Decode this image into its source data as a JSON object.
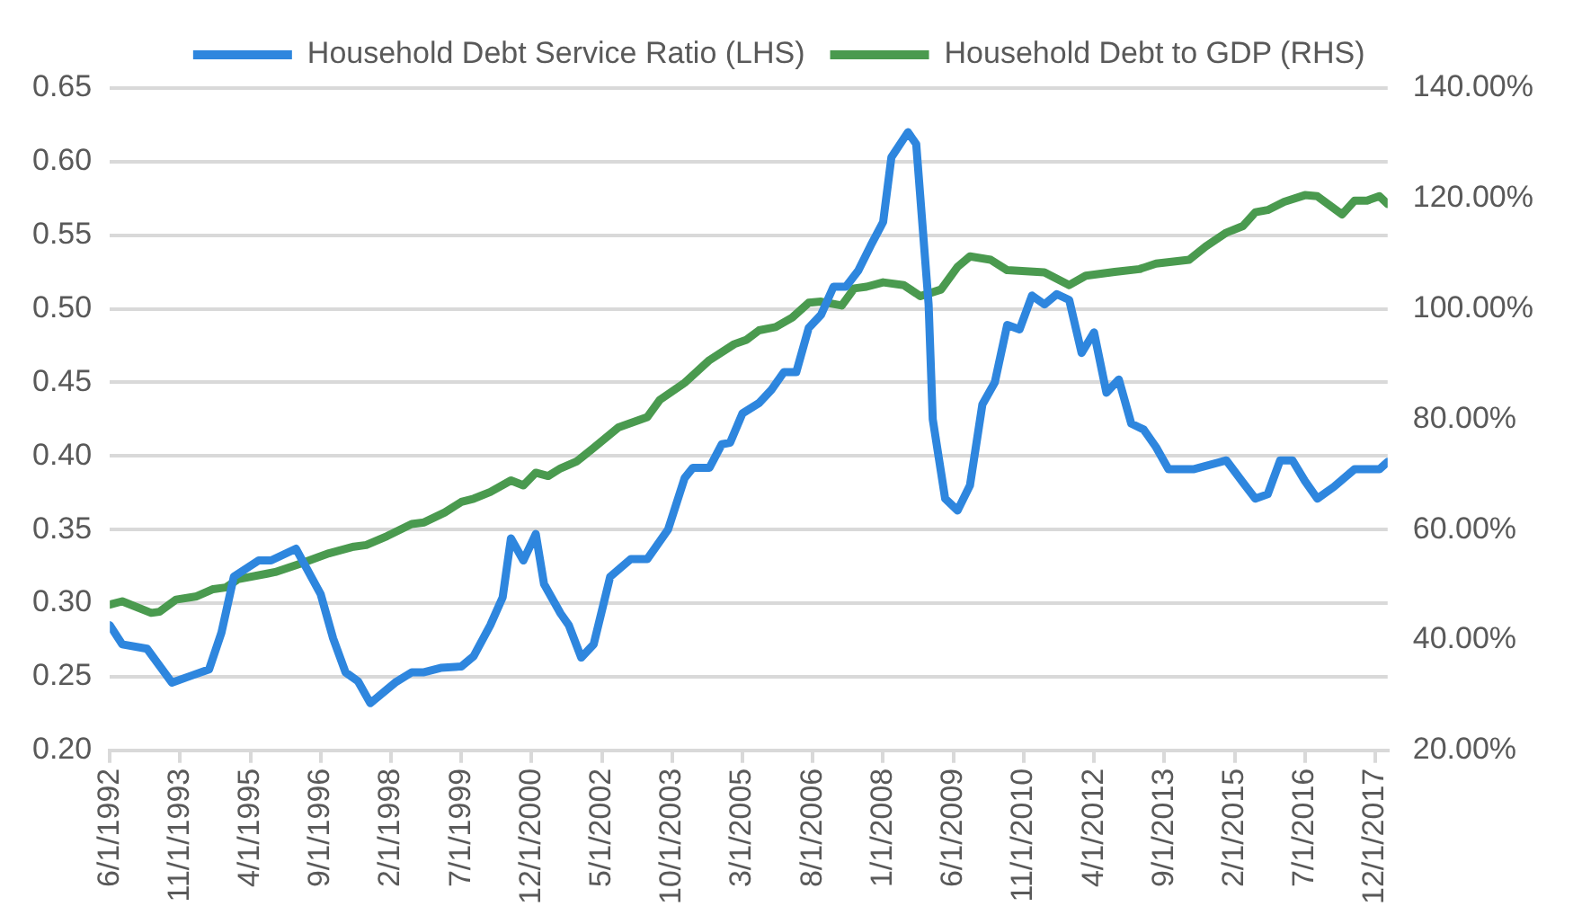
{
  "chart_data": {
    "type": "line",
    "legend": "top",
    "grid": "y",
    "marker": "none",
    "line_style": "solid",
    "xlim": [
      "1992-06",
      "2018-03"
    ],
    "xticks": [
      {
        "value": "1992-06",
        "label": "6/1/1992"
      },
      {
        "value": "1993-11",
        "label": "11/1/1993"
      },
      {
        "value": "1995-04",
        "label": "4/1/1995"
      },
      {
        "value": "1996-09",
        "label": "9/1/1996"
      },
      {
        "value": "1998-02",
        "label": "2/1/1998"
      },
      {
        "value": "1999-07",
        "label": "7/1/1999"
      },
      {
        "value": "2000-12",
        "label": "12/1/2000"
      },
      {
        "value": "2002-05",
        "label": "5/1/2002"
      },
      {
        "value": "2003-10",
        "label": "10/1/2003"
      },
      {
        "value": "2005-03",
        "label": "3/1/2005"
      },
      {
        "value": "2006-08",
        "label": "8/1/2006"
      },
      {
        "value": "2008-01",
        "label": "1/1/2008"
      },
      {
        "value": "2009-06",
        "label": "6/1/2009"
      },
      {
        "value": "2010-11",
        "label": "11/1/2010"
      },
      {
        "value": "2012-04",
        "label": "4/1/2012"
      },
      {
        "value": "2013-09",
        "label": "9/1/2013"
      },
      {
        "value": "2015-02",
        "label": "2/1/2015"
      },
      {
        "value": "2016-07",
        "label": "7/1/2016"
      },
      {
        "value": "2017-12",
        "label": "12/1/2017"
      }
    ],
    "ylim": [
      0.2,
      0.65
    ],
    "yticks": [
      {
        "value": 0.2,
        "label": "0.20"
      },
      {
        "value": 0.25,
        "label": "0.25"
      },
      {
        "value": 0.3,
        "label": "0.30"
      },
      {
        "value": 0.35,
        "label": "0.35"
      },
      {
        "value": 0.4,
        "label": "0.40"
      },
      {
        "value": 0.45,
        "label": "0.45"
      },
      {
        "value": 0.5,
        "label": "0.50"
      },
      {
        "value": 0.55,
        "label": "0.55"
      },
      {
        "value": 0.6,
        "label": "0.60"
      },
      {
        "value": 0.65,
        "label": "0.65"
      }
    ],
    "y2lim": [
      20,
      140
    ],
    "y2ticks": [
      {
        "value": 20,
        "label": "20.00%"
      },
      {
        "value": 40,
        "label": "40.00%"
      },
      {
        "value": 60,
        "label": "60.00%"
      },
      {
        "value": 80,
        "label": "80.00%"
      },
      {
        "value": 100,
        "label": "100.00%"
      },
      {
        "value": 120,
        "label": "120.00%"
      },
      {
        "value": 140,
        "label": "140.00%"
      }
    ],
    "series": [
      {
        "name": "Household Debt Service Ratio (LHS)",
        "color": "#2e86de",
        "x": [
          "1992-06",
          "1992-09",
          "1993-03",
          "1993-09",
          "1994-01",
          "1994-06",
          "1994-09",
          "1994-12",
          "1995-06",
          "1995-09",
          "1996-03",
          "1996-09",
          "1996-12",
          "1997-03",
          "1997-06",
          "1997-09",
          "1998-03",
          "1998-07",
          "1998-10",
          "1999-02",
          "1999-07",
          "1999-10",
          "2000-02",
          "2000-05",
          "2000-07",
          "2000-10",
          "2001-01",
          "2001-03",
          "2001-07",
          "2001-09",
          "2001-12",
          "2002-03",
          "2002-07",
          "2002-12",
          "2003-04",
          "2003-09",
          "2004-01",
          "2004-03",
          "2004-07",
          "2004-10",
          "2004-12",
          "2005-03",
          "2005-07",
          "2005-10",
          "2006-01",
          "2006-04",
          "2006-07",
          "2006-10",
          "2007-01",
          "2007-04",
          "2007-07",
          "2007-10",
          "2008-01",
          "2008-03",
          "2008-07",
          "2008-09",
          "2008-12",
          "2009-01",
          "2009-04",
          "2009-07",
          "2009-10",
          "2010-01",
          "2010-04",
          "2010-07",
          "2010-10",
          "2011-01",
          "2011-04",
          "2011-07",
          "2011-10",
          "2012-01",
          "2012-04",
          "2012-07",
          "2012-10",
          "2013-01",
          "2013-04",
          "2013-07",
          "2013-10",
          "2014-04",
          "2014-12",
          "2015-04",
          "2015-07",
          "2015-10",
          "2016-01",
          "2016-04",
          "2016-07",
          "2016-10",
          "2017-02",
          "2017-07",
          "2018-01",
          "2018-03"
        ],
        "values": [
          0.285,
          0.272,
          0.269,
          0.246,
          0.25,
          0.255,
          0.28,
          0.318,
          0.329,
          0.329,
          0.337,
          0.306,
          0.276,
          0.253,
          0.247,
          0.232,
          0.246,
          0.253,
          0.253,
          0.256,
          0.257,
          0.264,
          0.285,
          0.304,
          0.344,
          0.329,
          0.347,
          0.313,
          0.293,
          0.285,
          0.263,
          0.272,
          0.318,
          0.33,
          0.33,
          0.35,
          0.385,
          0.392,
          0.392,
          0.408,
          0.409,
          0.429,
          0.436,
          0.445,
          0.457,
          0.457,
          0.487,
          0.496,
          0.515,
          0.515,
          0.526,
          0.543,
          0.559,
          0.603,
          0.62,
          0.612,
          0.503,
          0.425,
          0.371,
          0.363,
          0.38,
          0.435,
          0.45,
          0.489,
          0.486,
          0.509,
          0.503,
          0.51,
          0.506,
          0.47,
          0.484,
          0.443,
          0.452,
          0.422,
          0.418,
          0.406,
          0.391,
          0.391,
          0.397,
          0.382,
          0.371,
          0.374,
          0.397,
          0.397,
          0.383,
          0.371,
          0.379,
          0.391,
          0.391,
          0.396
        ]
      },
      {
        "name": "Household Debt to GDP (RHS)",
        "color": "#4a9a4f",
        "axis": "y2",
        "x": [
          "1992-06",
          "1992-09",
          "1993-04",
          "1993-06",
          "1993-10",
          "1994-03",
          "1994-07",
          "1994-10",
          "1995-01",
          "1995-08",
          "1995-10",
          "1996-04",
          "1996-11",
          "1997-05",
          "1997-08",
          "1998-01",
          "1998-07",
          "1998-10",
          "1999-03",
          "1999-07",
          "1999-10",
          "2000-02",
          "2000-07",
          "2000-10",
          "2001-01",
          "2001-04",
          "2001-07",
          "2001-11",
          "2002-03",
          "2002-09",
          "2003-04",
          "2003-07",
          "2004-01",
          "2004-07",
          "2005-01",
          "2005-04",
          "2005-07",
          "2005-11",
          "2006-03",
          "2006-07",
          "2006-10",
          "2007-03",
          "2007-06",
          "2007-09",
          "2008-01",
          "2008-06",
          "2008-10",
          "2009-03",
          "2009-07",
          "2009-10",
          "2010-03",
          "2010-07",
          "2011-04",
          "2011-10",
          "2012-02",
          "2012-09",
          "2013-03",
          "2013-07",
          "2014-03",
          "2014-07",
          "2014-12",
          "2015-04",
          "2015-07",
          "2015-10",
          "2016-02",
          "2016-07",
          "2016-10",
          "2017-04",
          "2017-07",
          "2017-10",
          "2018-01",
          "2018-03"
        ],
        "values": [
          46.4,
          47.0,
          44.9,
          45.1,
          47.3,
          47.9,
          49.2,
          49.5,
          51.0,
          52.0,
          52.3,
          53.8,
          55.7,
          56.9,
          57.2,
          58.8,
          61.0,
          61.3,
          63.1,
          65.0,
          65.6,
          66.8,
          68.9,
          68.0,
          70.3,
          69.7,
          71.1,
          72.4,
          74.8,
          78.5,
          80.4,
          83.5,
          86.6,
          90.7,
          93.6,
          94.4,
          96.1,
          96.7,
          98.4,
          101.1,
          101.3,
          100.6,
          103.7,
          104.0,
          104.8,
          104.3,
          102.3,
          103.5,
          107.6,
          109.5,
          108.9,
          107.0,
          106.6,
          104.3,
          106.0,
          106.7,
          107.2,
          108.2,
          108.9,
          111.3,
          113.8,
          115.0,
          117.5,
          117.9,
          119.4,
          120.6,
          120.4,
          117.1,
          119.6,
          119.6,
          120.4,
          119.0
        ]
      }
    ]
  }
}
